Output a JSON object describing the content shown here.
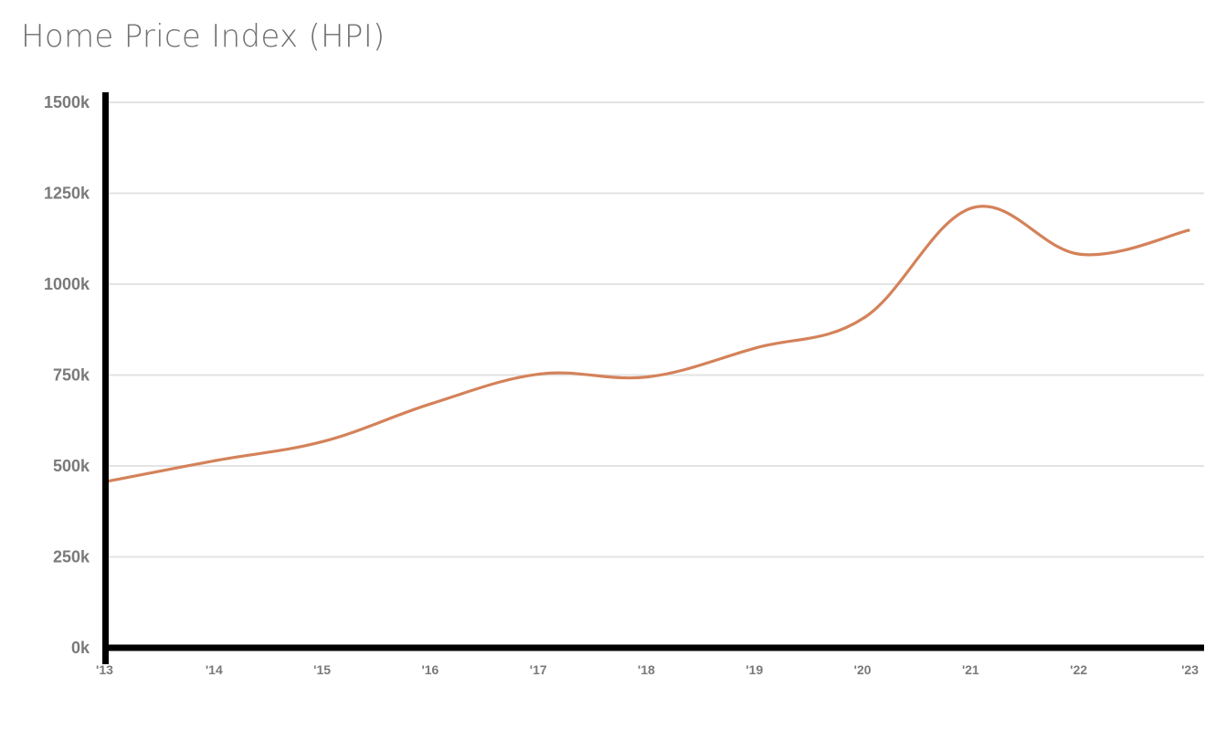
{
  "chart_data": {
    "type": "line",
    "title": "Home Price Index (HPI)",
    "xlabel": "",
    "ylabel": "",
    "categories": [
      "'13",
      "'14",
      "'15",
      "'16",
      "'17",
      "'18",
      "'19",
      "'20",
      "'21",
      "'22",
      "'23"
    ],
    "y_tick_labels": [
      "0k",
      "250k",
      "500k",
      "750k",
      "1000k",
      "1250k",
      "1500k"
    ],
    "y_ticks": [
      0,
      250000,
      500000,
      750000,
      1000000,
      1250000,
      1500000
    ],
    "ylim": [
      0,
      1500000
    ],
    "grid": true,
    "legend": "none",
    "series": [
      {
        "values": [
          458000,
          515000,
          568000,
          672000,
          753000,
          745000,
          825000,
          908000,
          1210000,
          1082000,
          1148000
        ],
        "color": "#d4825a"
      }
    ],
    "colors": {
      "line": "#d4825a",
      "grid": "#e3e3e3",
      "axis": "#000000",
      "tick_text": "#7a7a7a",
      "title_text": "#707070"
    }
  }
}
